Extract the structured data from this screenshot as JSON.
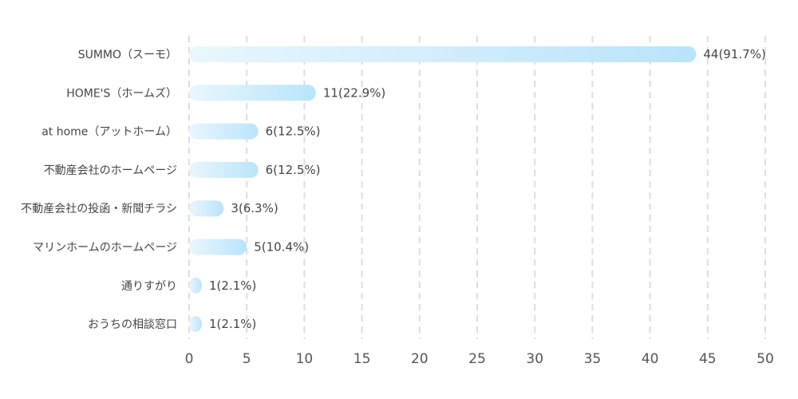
{
  "chart_data": {
    "type": "bar",
    "orientation": "horizontal",
    "categories": [
      "SUMMO（スーモ）",
      "HOME'S（ホームズ）",
      "at home（アットホーム）",
      "不動産会社のホームページ",
      "不動産会社の投函・新聞チラシ",
      "マリンホームのホームページ",
      "通りすがり",
      "おうちの相談窓口"
    ],
    "values": [
      44,
      11,
      6,
      6,
      3,
      5,
      1,
      1
    ],
    "data_labels": [
      "44(91.7%)",
      "11(22.9%)",
      "6(12.5%)",
      "6(12.5%)",
      "3(6.3%)",
      "5(10.4%)",
      "1(2.1%)",
      "1(2.1%)"
    ],
    "xlim": [
      0,
      50
    ],
    "xticks": [
      0,
      5,
      10,
      15,
      20,
      25,
      30,
      35,
      40,
      45,
      50
    ],
    "grid": true,
    "title": "",
    "xlabel": "",
    "ylabel": "",
    "colors": {
      "bar_start": "#eaf6fd",
      "bar_end": "#b9e4fb",
      "grid": "#dddddd",
      "text": "#444444"
    }
  }
}
